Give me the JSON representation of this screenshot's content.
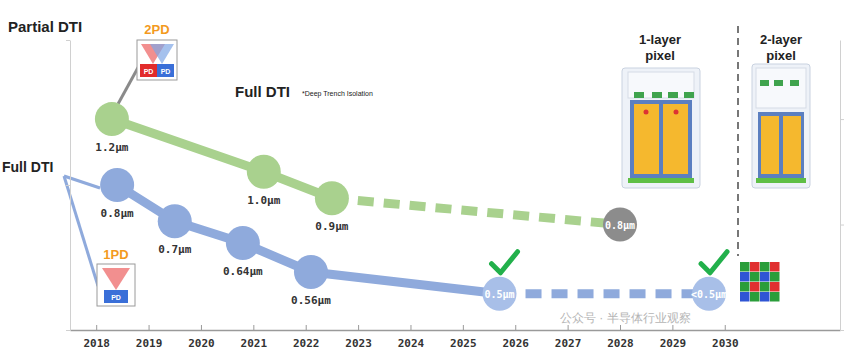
{
  "chart_data": {
    "type": "line",
    "xlim": [
      2017.5,
      2032.2
    ],
    "xticks": [
      2018,
      2019,
      2020,
      2021,
      2022,
      2023,
      2024,
      2025,
      2026,
      2027,
      2028,
      2029,
      2030
    ],
    "ylim": [
      0.4,
      1.2
    ],
    "yticks": [
      0.4,
      0.8,
      1.2
    ],
    "y2lim": [
      0.4,
      1.5
    ],
    "y2ticks": [
      0.4,
      0.8,
      1.2
    ],
    "tick_labels": "x",
    "grid": false,
    "series": [
      {
        "color": "#a9d18e",
        "axis": "y2",
        "line_style": "solid",
        "marker": "circle",
        "data_labels": true,
        "x": [
          2018.3,
          2021.2,
          2022.5
        ],
        "values": [
          1.2,
          1.0,
          0.9
        ],
        "value_labels": [
          "1.2µm",
          "1.0µm",
          "0.9µm"
        ]
      },
      {
        "color": "#a9d18e",
        "axis": "y2",
        "line_style": "dashed",
        "marker": "none",
        "x": [
          2022.5,
          2028
        ],
        "values": [
          0.9,
          0.8
        ]
      },
      {
        "color": "#8c8c8c",
        "axis": "y2",
        "line_style": "none",
        "marker": "circle",
        "data_labels": true,
        "x": [
          2028
        ],
        "values": [
          0.8
        ],
        "value_labels": [
          "0.8µm"
        ]
      },
      {
        "color": "#8faadc",
        "line_style": "solid",
        "marker": "circle",
        "data_labels": true,
        "x": [
          2018.4,
          2019.5,
          2020.8,
          2022.1
        ],
        "values": [
          0.8,
          0.7,
          0.64,
          0.56
        ],
        "value_labels": [
          "0.8µm",
          "0.7µm",
          "0.64µm",
          "0.56µm"
        ]
      },
      {
        "color": "#8faadc",
        "line_style": "solid",
        "marker": "none",
        "x": [
          2022.1,
          2025.7
        ],
        "values": [
          0.56,
          0.5
        ]
      },
      {
        "color": "#8faadc",
        "line_style": "dashed",
        "marker": "none",
        "x": [
          2025.7,
          2029.7
        ],
        "values": [
          0.5,
          0.5
        ]
      },
      {
        "color": "#a8bfe8",
        "line_style": "none",
        "marker": "circle",
        "data_labels": true,
        "x": [
          2025.7,
          2029.7
        ],
        "values": [
          0.5,
          0.5
        ],
        "value_labels": [
          "0.5µm",
          "<0.5µm"
        ]
      }
    ],
    "annotations": {
      "partial_dti": "Partial DTI",
      "two_pd": "2PD",
      "pd": "PD",
      "full_dti_top": "Full DTI",
      "dti_note": "*Deep Trench Isolation",
      "full_dti_left": "Full DTI",
      "one_pd": "1PD",
      "one_layer": [
        "1-layer",
        "pixel"
      ],
      "two_layer": [
        "2-layer",
        "pixel"
      ],
      "watermark": "公众号 · 半导体行业观察"
    }
  }
}
